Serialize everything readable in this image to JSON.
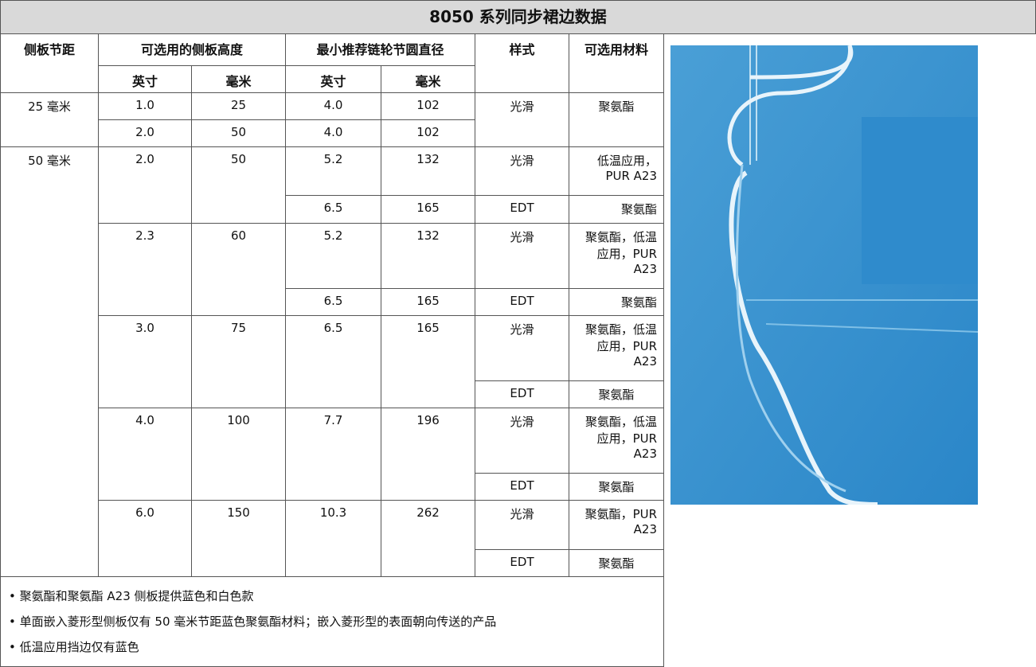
{
  "header": {
    "title": "8050 系列同步裙边数据"
  },
  "table": {
    "head": [
      "侧板节距",
      "可选用的侧板高度",
      "最小推荐链轮节圆直径",
      "样式",
      "可选用材料"
    ],
    "subhead": [
      "英寸",
      "毫米",
      "英寸",
      "毫米"
    ],
    "groups": [
      {
        "pitch": "25 毫米",
        "style": "光滑",
        "material": "聚氨酯",
        "rows": [
          [
            "1.0",
            "25",
            "4.0",
            "102"
          ],
          [
            "2.0",
            "50",
            "4.0",
            "102"
          ]
        ]
      },
      {
        "pitch": "50 毫米",
        "heights": [
          {
            "in": "2.0",
            "mm": "50",
            "options": [
              [
                "5.2",
                "132",
                "光滑",
                "低温应用，PUR A23"
              ],
              [
                "6.5",
                "165",
                "EDT",
                "聚氨酯"
              ]
            ]
          },
          {
            "in": "2.3",
            "mm": "60",
            "options": [
              [
                "5.2",
                "132",
                "光滑",
                "聚氨酯，低温应用，PUR A23"
              ],
              [
                "6.5",
                "165",
                "EDT",
                "聚氨酯"
              ]
            ]
          },
          {
            "in": "3.0",
            "mm": "75",
            "options": [
              [
                "6.5",
                "165",
                "光滑",
                "聚氨酯，低温应用，PUR A23"
              ],
              [
                "EDT",
                "聚氨酯"
              ]
            ]
          },
          {
            "in": "4.0",
            "mm": "100",
            "options": [
              [
                "7.7",
                "196",
                "光滑",
                "聚氨酯，低温应用，PUR A23"
              ],
              [
                "EDT",
                "聚氨酯"
              ]
            ]
          },
          {
            "in": "6.0",
            "mm": "150",
            "options": [
              [
                "10.3",
                "262",
                "光滑",
                "聚氨酯，PUR A23"
              ],
              [
                "EDT",
                "聚氨酯"
              ]
            ]
          }
        ]
      }
    ],
    "notes": [
      "聚氨酯和聚氨酯 A23 侧板提供蓝色和白色款",
      "单面嵌入菱形型侧板仅有 50 毫米节距蓝色聚氨酯材料；嵌入菱形型的表面朝向传送的产品",
      "低温应用挡边仅有蓝色"
    ]
  }
}
